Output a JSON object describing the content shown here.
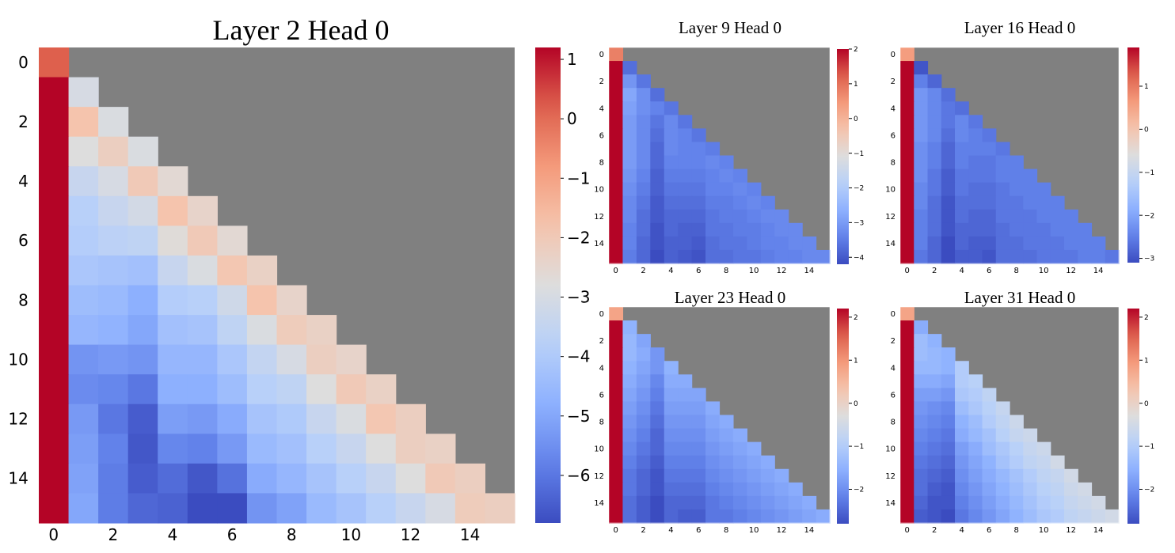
{
  "chart_data": [
    {
      "type": "heatmap",
      "title": "Layer 2 Head 0",
      "size": 16,
      "x_ticks": [
        "0",
        "2",
        "4",
        "6",
        "8",
        "10",
        "12",
        "14"
      ],
      "y_ticks": [
        "0",
        "2",
        "4",
        "6",
        "8",
        "10",
        "12",
        "14"
      ],
      "colorbar_ticks": [
        "1",
        "0",
        "−1",
        "−2",
        "−3",
        "−4",
        "−5",
        "−6"
      ],
      "colorbar_values": [
        1,
        0,
        -1,
        -2,
        -3,
        -4,
        -5,
        -6
      ],
      "vmin": -6.8,
      "vmax": 1.2,
      "masked_color": "#808080",
      "colormap": "coolwarm",
      "matrix": [
        [
          0.2
        ],
        [
          1.2,
          -3.0
        ],
        [
          1.2,
          -1.8,
          -2.9
        ],
        [
          1.2,
          -2.8,
          -2.2,
          -2.9
        ],
        [
          1.2,
          -3.4,
          -3.0,
          -2.0,
          -2.6
        ],
        [
          1.2,
          -3.8,
          -3.4,
          -3.1,
          -1.8,
          -2.4
        ],
        [
          1.2,
          -3.9,
          -3.7,
          -3.6,
          -2.7,
          -2.0,
          -2.6
        ],
        [
          1.2,
          -4.1,
          -4.2,
          -4.3,
          -3.4,
          -2.9,
          -1.9,
          -2.3
        ],
        [
          1.2,
          -4.4,
          -4.5,
          -4.8,
          -3.9,
          -3.8,
          -3.2,
          -1.8,
          -2.4
        ],
        [
          1.2,
          -4.6,
          -4.7,
          -5.0,
          -4.3,
          -4.2,
          -3.6,
          -2.9,
          -2.1,
          -2.3
        ],
        [
          1.2,
          -5.4,
          -5.3,
          -5.4,
          -4.6,
          -4.6,
          -4.1,
          -3.5,
          -3.0,
          -2.2,
          -2.4
        ],
        [
          1.2,
          -5.6,
          -5.7,
          -6.0,
          -4.8,
          -4.8,
          -4.4,
          -3.8,
          -3.6,
          -2.8,
          -2.0,
          -2.3
        ],
        [
          1.2,
          -5.3,
          -6.0,
          -6.5,
          -5.2,
          -5.3,
          -4.9,
          -4.2,
          -4.0,
          -3.4,
          -2.9,
          -1.9,
          -2.2
        ],
        [
          1.2,
          -5.2,
          -5.8,
          -6.6,
          -5.7,
          -5.8,
          -5.3,
          -4.5,
          -4.3,
          -3.8,
          -3.4,
          -2.8,
          -2.2,
          -2.3
        ],
        [
          1.2,
          -5.1,
          -5.9,
          -6.5,
          -6.2,
          -6.6,
          -6.1,
          -4.9,
          -4.6,
          -4.2,
          -3.8,
          -3.4,
          -2.8,
          -2.0,
          -2.2
        ],
        [
          1.2,
          -5.0,
          -5.9,
          -6.3,
          -6.4,
          -6.8,
          -6.8,
          -5.4,
          -5.1,
          -4.5,
          -4.2,
          -3.8,
          -3.4,
          -3.0,
          -2.1,
          -2.2
        ]
      ]
    },
    {
      "type": "heatmap",
      "title": "Layer 9 Head 0",
      "size": 16,
      "x_ticks": [
        "0",
        "2",
        "4",
        "6",
        "8",
        "10",
        "12",
        "14"
      ],
      "y_ticks": [
        "0",
        "2",
        "4",
        "6",
        "8",
        "10",
        "12",
        "14"
      ],
      "colorbar_ticks": [
        "2",
        "1",
        "0",
        "−1",
        "−2",
        "−3",
        "−4"
      ],
      "colorbar_values": [
        2,
        1,
        0,
        -1,
        -2,
        -3,
        -4
      ],
      "vmin": -4.2,
      "vmax": 2.0,
      "masked_color": "#808080",
      "colormap": "coolwarm",
      "matrix": [
        [
          0.8
        ],
        [
          2.0,
          -3.7
        ],
        [
          2.0,
          -3.1,
          -3.6
        ],
        [
          2.0,
          -2.8,
          -3.2,
          -3.7
        ],
        [
          2.0,
          -2.9,
          -3.2,
          -3.4,
          -3.6
        ],
        [
          2.0,
          -3.0,
          -3.3,
          -3.6,
          -3.3,
          -3.6
        ],
        [
          2.0,
          -3.0,
          -3.3,
          -3.7,
          -3.3,
          -3.4,
          -3.6
        ],
        [
          2.0,
          -3.0,
          -3.3,
          -3.8,
          -3.3,
          -3.4,
          -3.4,
          -3.5
        ],
        [
          2.0,
          -3.0,
          -3.3,
          -3.8,
          -3.4,
          -3.4,
          -3.4,
          -3.3,
          -3.4
        ],
        [
          2.0,
          -3.1,
          -3.4,
          -3.9,
          -3.5,
          -3.5,
          -3.5,
          -3.4,
          -3.3,
          -3.4
        ],
        [
          2.0,
          -3.2,
          -3.5,
          -3.9,
          -3.6,
          -3.6,
          -3.6,
          -3.4,
          -3.4,
          -3.3,
          -3.4
        ],
        [
          2.0,
          -3.3,
          -3.6,
          -4.0,
          -3.7,
          -3.7,
          -3.7,
          -3.5,
          -3.5,
          -3.4,
          -3.3,
          -3.4
        ],
        [
          2.0,
          -3.3,
          -3.7,
          -4.0,
          -3.8,
          -3.8,
          -3.8,
          -3.6,
          -3.5,
          -3.5,
          -3.4,
          -3.3,
          -3.3
        ],
        [
          2.0,
          -3.4,
          -3.7,
          -4.1,
          -3.8,
          -3.9,
          -3.9,
          -3.6,
          -3.6,
          -3.5,
          -3.5,
          -3.4,
          -3.3,
          -3.3
        ],
        [
          2.0,
          -3.4,
          -3.8,
          -4.1,
          -3.9,
          -3.9,
          -4.0,
          -3.7,
          -3.6,
          -3.6,
          -3.5,
          -3.4,
          -3.4,
          -3.3,
          -3.3
        ],
        [
          2.0,
          -3.5,
          -3.8,
          -4.2,
          -3.9,
          -4.0,
          -4.1,
          -3.7,
          -3.7,
          -3.6,
          -3.6,
          -3.5,
          -3.4,
          -3.4,
          -3.3,
          -3.3
        ]
      ]
    },
    {
      "type": "heatmap",
      "title": "Layer 16 Head 0",
      "size": 16,
      "x_ticks": [
        "0",
        "2",
        "4",
        "6",
        "8",
        "10",
        "12",
        "14"
      ],
      "y_ticks": [
        "0",
        "2",
        "4",
        "6",
        "8",
        "10",
        "12",
        "14"
      ],
      "colorbar_ticks": [
        "1",
        "0",
        "−1",
        "−2",
        "−3"
      ],
      "colorbar_values": [
        1,
        0,
        -1,
        -2,
        -3
      ],
      "vmin": -3.1,
      "vmax": 1.9,
      "masked_color": "#808080",
      "colormap": "coolwarm",
      "matrix": [
        [
          0.6
        ],
        [
          1.9,
          -3.0
        ],
        [
          1.9,
          -2.5,
          -2.8
        ],
        [
          1.9,
          -2.2,
          -2.4,
          -2.7
        ],
        [
          1.9,
          -2.2,
          -2.4,
          -2.6,
          -2.7
        ],
        [
          1.9,
          -2.2,
          -2.4,
          -2.6,
          -2.4,
          -2.6
        ],
        [
          1.9,
          -2.2,
          -2.4,
          -2.7,
          -2.4,
          -2.5,
          -2.6
        ],
        [
          1.9,
          -2.3,
          -2.5,
          -2.8,
          -2.5,
          -2.5,
          -2.5,
          -2.6
        ],
        [
          1.9,
          -2.3,
          -2.5,
          -2.8,
          -2.5,
          -2.6,
          -2.6,
          -2.5,
          -2.5
        ],
        [
          1.9,
          -2.3,
          -2.6,
          -2.9,
          -2.6,
          -2.6,
          -2.6,
          -2.5,
          -2.5,
          -2.5
        ],
        [
          1.9,
          -2.4,
          -2.6,
          -2.9,
          -2.6,
          -2.7,
          -2.7,
          -2.6,
          -2.5,
          -2.5,
          -2.5
        ],
        [
          1.9,
          -2.4,
          -2.7,
          -3.0,
          -2.7,
          -2.7,
          -2.7,
          -2.6,
          -2.6,
          -2.5,
          -2.5,
          -2.5
        ],
        [
          1.9,
          -2.5,
          -2.7,
          -3.0,
          -2.7,
          -2.8,
          -2.8,
          -2.6,
          -2.6,
          -2.6,
          -2.5,
          -2.5,
          -2.5
        ],
        [
          1.9,
          -2.5,
          -2.7,
          -3.0,
          -2.8,
          -2.8,
          -2.8,
          -2.7,
          -2.6,
          -2.6,
          -2.6,
          -2.5,
          -2.5,
          -2.5
        ],
        [
          1.9,
          -2.5,
          -2.8,
          -3.1,
          -2.8,
          -2.9,
          -2.9,
          -2.7,
          -2.7,
          -2.6,
          -2.6,
          -2.6,
          -2.5,
          -2.5,
          -2.5
        ],
        [
          1.9,
          -2.6,
          -2.8,
          -3.1,
          -2.9,
          -2.9,
          -3.0,
          -2.7,
          -2.7,
          -2.7,
          -2.6,
          -2.6,
          -2.6,
          -2.5,
          -2.5,
          -2.6
        ]
      ]
    },
    {
      "type": "heatmap",
      "title": "Layer 23 Head 0",
      "size": 16,
      "x_ticks": [
        "0",
        "2",
        "4",
        "6",
        "8",
        "10",
        "12",
        "14"
      ],
      "y_ticks": [
        "0",
        "2",
        "4",
        "6",
        "8",
        "10",
        "12",
        "14"
      ],
      "colorbar_ticks": [
        "2",
        "1",
        "0",
        "−1",
        "−2"
      ],
      "colorbar_values": [
        2,
        1,
        0,
        -1,
        -2
      ],
      "vmin": -2.8,
      "vmax": 2.2,
      "masked_color": "#808080",
      "colormap": "coolwarm",
      "matrix": [
        [
          0.8
        ],
        [
          2.2,
          -1.5
        ],
        [
          2.2,
          -1.4,
          -1.7
        ],
        [
          2.2,
          -1.4,
          -1.6,
          -1.9
        ],
        [
          2.2,
          -1.5,
          -1.7,
          -1.9,
          -1.5
        ],
        [
          2.2,
          -1.6,
          -1.8,
          -2.1,
          -1.6,
          -1.6
        ],
        [
          2.2,
          -1.7,
          -1.9,
          -2.2,
          -1.7,
          -1.7,
          -1.7
        ],
        [
          2.2,
          -1.8,
          -2.0,
          -2.3,
          -1.8,
          -1.8,
          -1.8,
          -1.6
        ],
        [
          2.2,
          -1.9,
          -2.1,
          -2.4,
          -1.9,
          -1.9,
          -1.9,
          -1.7,
          -1.6
        ],
        [
          2.2,
          -2.0,
          -2.2,
          -2.5,
          -2.0,
          -2.0,
          -2.0,
          -1.8,
          -1.7,
          -1.6
        ],
        [
          2.2,
          -2.1,
          -2.3,
          -2.5,
          -2.1,
          -2.1,
          -2.1,
          -1.9,
          -1.8,
          -1.7,
          -1.6
        ],
        [
          2.2,
          -2.2,
          -2.4,
          -2.6,
          -2.2,
          -2.2,
          -2.2,
          -2.0,
          -1.9,
          -1.8,
          -1.7,
          -1.6
        ],
        [
          2.2,
          -2.3,
          -2.5,
          -2.7,
          -2.3,
          -2.3,
          -2.3,
          -2.1,
          -2.0,
          -1.9,
          -1.8,
          -1.7,
          -1.6
        ],
        [
          2.2,
          -2.3,
          -2.5,
          -2.7,
          -2.4,
          -2.4,
          -2.4,
          -2.2,
          -2.1,
          -2.0,
          -1.9,
          -1.8,
          -1.7,
          -1.6
        ],
        [
          2.2,
          -2.4,
          -2.6,
          -2.8,
          -2.5,
          -2.5,
          -2.5,
          -2.3,
          -2.2,
          -2.1,
          -2.0,
          -1.9,
          -1.8,
          -1.7,
          -1.6
        ],
        [
          2.2,
          -2.4,
          -2.6,
          -2.8,
          -2.5,
          -2.6,
          -2.6,
          -2.3,
          -2.3,
          -2.2,
          -2.1,
          -2.0,
          -1.9,
          -1.8,
          -1.7,
          -1.6
        ]
      ]
    },
    {
      "type": "heatmap",
      "title": "Layer 31 Head 0",
      "size": 16,
      "x_ticks": [
        "0",
        "2",
        "4",
        "6",
        "8",
        "10",
        "12",
        "14"
      ],
      "y_ticks": [
        "0",
        "2",
        "4",
        "6",
        "8",
        "10",
        "12",
        "14"
      ],
      "colorbar_ticks": [
        "2",
        "1",
        "0",
        "−1",
        "−2"
      ],
      "colorbar_values": [
        2,
        1,
        0,
        -1,
        -2
      ],
      "vmin": -2.8,
      "vmax": 2.2,
      "masked_color": "#808080",
      "colormap": "coolwarm",
      "matrix": [
        [
          0.8
        ],
        [
          2.2,
          -1.6
        ],
        [
          2.2,
          -1.3,
          -1.5
        ],
        [
          2.2,
          -1.3,
          -1.4,
          -1.5
        ],
        [
          2.2,
          -1.4,
          -1.4,
          -1.5,
          -1.0
        ],
        [
          2.2,
          -1.6,
          -1.6,
          -1.7,
          -1.0,
          -0.9
        ],
        [
          2.2,
          -1.8,
          -1.8,
          -1.9,
          -1.1,
          -1.0,
          -0.8
        ],
        [
          2.2,
          -1.9,
          -2.0,
          -2.1,
          -1.3,
          -1.1,
          -0.9,
          -0.7
        ],
        [
          2.2,
          -2.0,
          -2.1,
          -2.2,
          -1.5,
          -1.3,
          -1.0,
          -0.8,
          -0.6
        ],
        [
          2.2,
          -2.1,
          -2.2,
          -2.3,
          -1.6,
          -1.4,
          -1.2,
          -0.9,
          -0.7,
          -0.6
        ],
        [
          2.2,
          -2.2,
          -2.3,
          -2.4,
          -1.8,
          -1.6,
          -1.3,
          -1.1,
          -0.9,
          -0.7,
          -0.6
        ],
        [
          2.2,
          -2.3,
          -2.4,
          -2.5,
          -1.9,
          -1.7,
          -1.5,
          -1.2,
          -1.0,
          -0.8,
          -0.7,
          -0.5
        ],
        [
          2.2,
          -2.4,
          -2.5,
          -2.6,
          -2.0,
          -1.8,
          -1.6,
          -1.4,
          -1.2,
          -1.0,
          -0.8,
          -0.7,
          -0.5
        ],
        [
          2.2,
          -2.4,
          -2.6,
          -2.7,
          -2.1,
          -1.9,
          -1.7,
          -1.5,
          -1.3,
          -1.1,
          -0.9,
          -0.8,
          -0.6,
          -0.5
        ],
        [
          2.2,
          -2.5,
          -2.7,
          -2.7,
          -2.2,
          -2.0,
          -1.8,
          -1.6,
          -1.4,
          -1.2,
          -1.0,
          -0.9,
          -0.7,
          -0.6,
          -0.5
        ],
        [
          2.2,
          -2.6,
          -2.7,
          -2.8,
          -2.3,
          -2.1,
          -1.9,
          -1.7,
          -1.5,
          -1.3,
          -1.1,
          -1.0,
          -0.8,
          -0.7,
          -0.6,
          -0.5
        ]
      ]
    }
  ]
}
